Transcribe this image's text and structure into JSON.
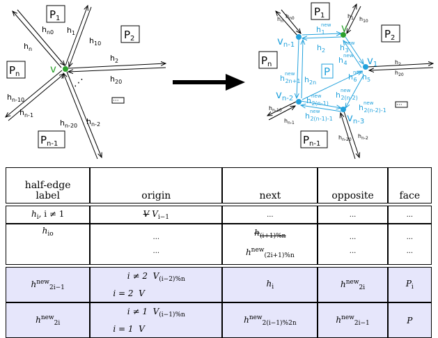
{
  "diagram": {
    "left": {
      "faces": [
        "P",
        "P",
        "P",
        "P"
      ],
      "face_subs": [
        "1",
        "2",
        "n",
        "n-1"
      ],
      "vertex": "v",
      "half_edges": [
        {
          "base": "h",
          "sub": "n"
        },
        {
          "base": "h",
          "sub": "n0"
        },
        {
          "base": "h",
          "sub": "1"
        },
        {
          "base": "h",
          "sub": "10"
        },
        {
          "base": "h",
          "sub": "2"
        },
        {
          "base": "h",
          "sub": "20"
        },
        {
          "base": "h",
          "sub": "n-10"
        },
        {
          "base": "h",
          "sub": "n-1"
        },
        {
          "base": "h",
          "sub": "n-20"
        },
        {
          "base": "h",
          "sub": "n-2"
        }
      ],
      "dots": "⋰"
    },
    "right": {
      "faces": [
        "P",
        "P",
        "P",
        "P",
        "P"
      ],
      "face_subs": [
        "1",
        "2",
        "n",
        "n-1",
        ""
      ],
      "vertices": [
        "v",
        "v",
        "v",
        "v"
      ],
      "vertex_subs": [
        "n-1",
        "1",
        "n-2",
        "n-3"
      ],
      "black_edges": [
        "h",
        "h",
        "h",
        "h",
        "h",
        "h",
        "h",
        "h",
        "h",
        "h"
      ],
      "black_subs": [
        "n",
        "n0",
        "1",
        "10",
        "2",
        "20",
        "n-10",
        "n-1",
        "n-20",
        "n-2"
      ],
      "new_sup": "new",
      "cyan_subs": [
        "1",
        "2",
        "3",
        "4",
        "6",
        "5",
        "2n",
        "2n+1",
        "2(n-1)",
        "2(n-2)",
        "2(n-1)-1",
        "2(n-2)-1"
      ]
    },
    "ellipsis_box": "···",
    "colors": {
      "cyan": "#21a1dc",
      "green": "#2ca02c",
      "black": "#000000"
    }
  },
  "table": {
    "headers": [
      "half-edge\nlabel",
      "origin",
      "next",
      "opposite",
      "face"
    ],
    "rows": {
      "r1": {
        "label_base": "h",
        "label_sub": "i",
        "label_cond": ", i ≠ 1",
        "origin_strike": "V",
        "origin": "V",
        "origin_sub": "i−1",
        "next": "...",
        "opposite": "...",
        "face": "..."
      },
      "r2": {
        "label_base": "h",
        "label_sub": "io",
        "origin_a": "...",
        "origin_b": "...",
        "next_strike": "h",
        "next_strike_sub": "(i+1)%n",
        "next_b": "h",
        "next_b_sup": "new",
        "next_b_sub": "(2i+1)%n",
        "opposite_a": "...",
        "opposite_b": "...",
        "face_a": "...",
        "face_b": "..."
      },
      "r3": {
        "label_base": "h",
        "label_sup": "new",
        "label_sub": "2i−1",
        "origin_cond1": "i ≠ 2",
        "origin_val1": "V",
        "origin_val1_sub": "(i−2)%n",
        "origin_cond2": "i = 2",
        "origin_val2": "V",
        "next": "h",
        "next_sub": "i",
        "opposite": "h",
        "opposite_sup": "new",
        "opposite_sub": "2i",
        "face": "P",
        "face_sub": "i"
      },
      "r4": {
        "label_base": "h",
        "label_sup": "new",
        "label_sub": "2i",
        "origin_cond1": "i ≠ 1",
        "origin_val1": "V",
        "origin_val1_sub": "(i−1)%n",
        "origin_cond2": "i = 1",
        "origin_val2": "V",
        "next": "h",
        "next_sup": "new",
        "next_sub": "2(i−1)%2n",
        "opposite": "h",
        "opposite_sup": "new",
        "opposite_sub": "2i−1",
        "face": "P"
      }
    }
  }
}
